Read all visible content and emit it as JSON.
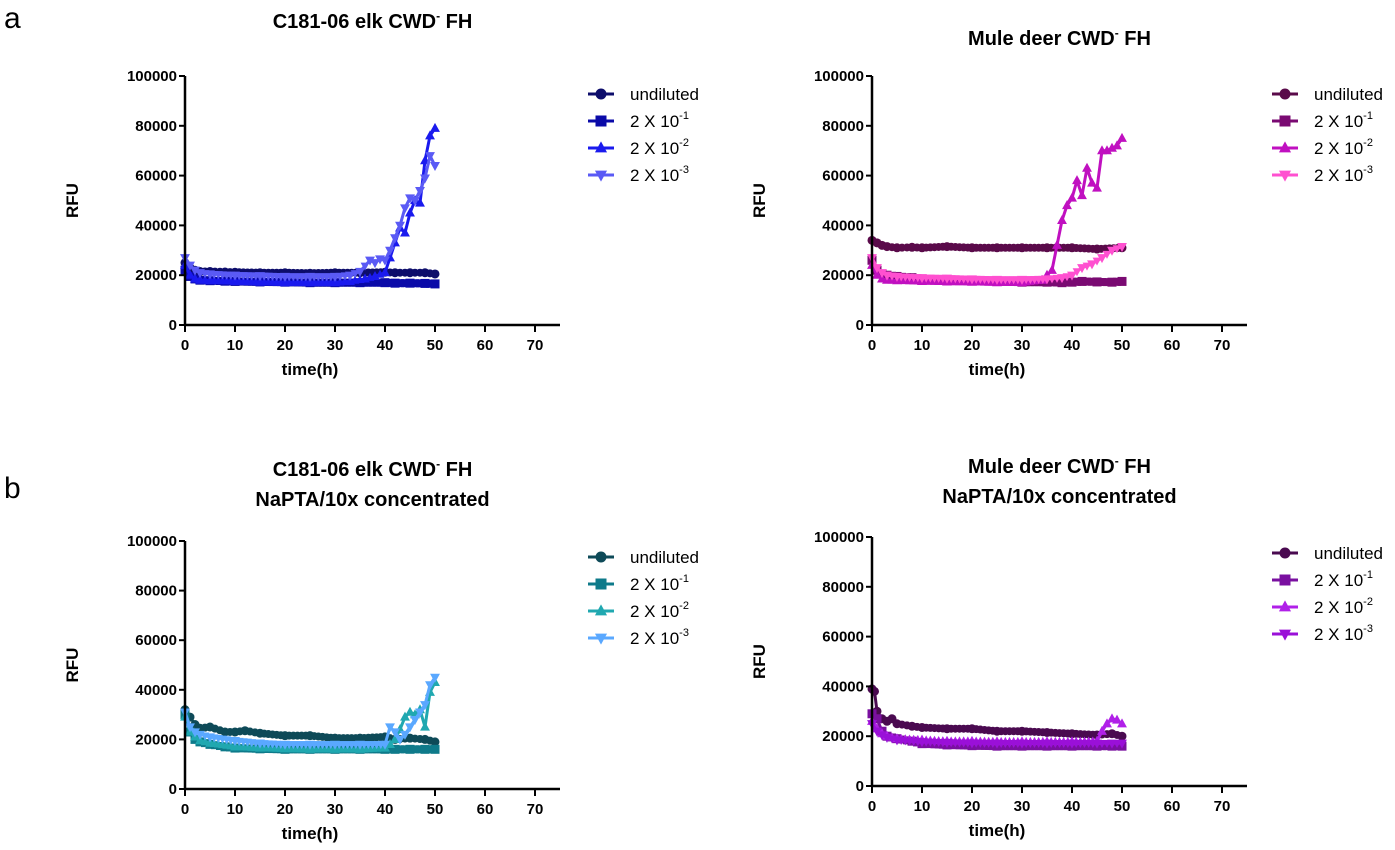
{
  "figure": {
    "panel_labels": [
      "a",
      "b"
    ]
  },
  "chart_data": [
    {
      "type": "line",
      "panel": "a",
      "title": "C181-06 elk CWD- FH",
      "title_lines": [
        {
          "pre": "C181-06 elk CWD",
          "sup": "-",
          "post": " FH"
        }
      ],
      "xlabel": "time(h)",
      "ylabel": "RFU",
      "xlim": [
        0,
        75
      ],
      "ylim": [
        0,
        100000
      ],
      "xticks": [
        0,
        10,
        20,
        30,
        40,
        50,
        60,
        70
      ],
      "yticks": [
        0,
        20000,
        40000,
        60000,
        80000,
        100000
      ],
      "grid": false,
      "legend_position": "right",
      "series": [
        {
          "name": "undiluted",
          "label_base": "undiluted",
          "label_sup": "",
          "marker": "circle",
          "color": "#0d0d6b",
          "x": [
            0,
            1,
            2,
            3,
            5,
            8,
            10,
            15,
            20,
            25,
            30,
            35,
            40,
            42,
            45,
            48,
            50
          ],
          "y": [
            25000,
            23000,
            22000,
            21500,
            21500,
            21300,
            21200,
            21000,
            21000,
            20800,
            21000,
            21000,
            21200,
            21000,
            21000,
            21000,
            20500
          ]
        },
        {
          "name": "2 X 10^-1",
          "label_base": "2 X 10",
          "label_sup": "-1",
          "marker": "square",
          "color": "#0a0aa8",
          "x": [
            0,
            1,
            2,
            3,
            5,
            8,
            10,
            15,
            20,
            25,
            30,
            35,
            40,
            42,
            45,
            48,
            50
          ],
          "y": [
            22000,
            19500,
            18500,
            18000,
            17800,
            17600,
            17500,
            17300,
            17200,
            17000,
            17000,
            17000,
            17000,
            16800,
            16800,
            16700,
            16500
          ]
        },
        {
          "name": "2 X 10^-2",
          "label_base": "2 X 10",
          "label_sup": "-2",
          "marker": "triangle-up",
          "color": "#1a1aee",
          "x": [
            0,
            1,
            2,
            3,
            5,
            10,
            15,
            20,
            25,
            30,
            33,
            36,
            38,
            40,
            41,
            42,
            43,
            44,
            45,
            46,
            47,
            48,
            49,
            50
          ],
          "y": [
            24000,
            20000,
            18500,
            18000,
            17800,
            17500,
            17200,
            17000,
            17000,
            17000,
            17500,
            18500,
            19500,
            21000,
            27000,
            33000,
            39000,
            37000,
            45000,
            50000,
            49000,
            66000,
            76000,
            79000
          ]
        },
        {
          "name": "2 X 10^-3",
          "label_base": "2 X 10",
          "label_sup": "-3",
          "marker": "triangle-down",
          "color": "#5a5af5",
          "x": [
            0,
            1,
            2,
            3,
            5,
            10,
            15,
            20,
            25,
            30,
            33,
            35,
            37,
            38,
            39,
            40,
            41,
            42,
            43,
            44,
            45,
            46,
            47,
            48,
            49,
            50
          ],
          "y": [
            27000,
            24000,
            22000,
            21000,
            20500,
            20000,
            19800,
            19500,
            19500,
            19500,
            20000,
            21500,
            26000,
            25000,
            26500,
            26000,
            30000,
            35000,
            40000,
            47000,
            51000,
            50000,
            54000,
            59000,
            68000,
            64000
          ]
        }
      ]
    },
    {
      "type": "line",
      "panel": "a",
      "title": "Mule deer CWD- FH",
      "title_lines": [
        {
          "pre": "Mule deer CWD",
          "sup": "-",
          "post": " FH"
        }
      ],
      "xlabel": "time(h)",
      "ylabel": "RFU",
      "xlim": [
        0,
        75
      ],
      "ylim": [
        0,
        100000
      ],
      "xticks": [
        0,
        10,
        20,
        30,
        40,
        50,
        60,
        70
      ],
      "yticks": [
        0,
        20000,
        40000,
        60000,
        80000,
        100000
      ],
      "grid": false,
      "legend_position": "right",
      "series": [
        {
          "name": "undiluted",
          "label_base": "undiluted",
          "label_sup": "",
          "marker": "circle",
          "color": "#5a0a4a",
          "x": [
            0,
            1,
            2,
            3,
            5,
            8,
            10,
            15,
            20,
            25,
            30,
            35,
            40,
            45,
            50
          ],
          "y": [
            34000,
            33000,
            32000,
            31500,
            31000,
            31200,
            31000,
            31500,
            31000,
            31000,
            31000,
            31000,
            31000,
            30500,
            31000
          ]
        },
        {
          "name": "2 X 10^-1",
          "label_base": "2 X 10",
          "label_sup": "-1",
          "marker": "square",
          "color": "#7a0a72",
          "x": [
            0,
            1,
            2,
            3,
            5,
            8,
            10,
            15,
            20,
            25,
            30,
            35,
            38,
            40,
            42,
            45,
            48,
            50
          ],
          "y": [
            26000,
            22000,
            20500,
            20000,
            19500,
            19000,
            18500,
            18000,
            17800,
            17500,
            17200,
            17200,
            17000,
            17200,
            17500,
            17300,
            17200,
            17500
          ]
        },
        {
          "name": "2 X 10^-2",
          "label_base": "2 X 10",
          "label_sup": "-2",
          "marker": "triangle-up",
          "color": "#c010c0",
          "x": [
            0,
            1,
            2,
            3,
            5,
            10,
            15,
            20,
            25,
            30,
            34,
            35,
            36,
            37,
            38,
            39,
            40,
            41,
            42,
            43,
            44,
            45,
            46,
            47,
            48,
            49,
            50
          ],
          "y": [
            24000,
            20000,
            18500,
            18000,
            17800,
            17500,
            17300,
            17200,
            17000,
            17000,
            18000,
            20000,
            22000,
            32000,
            42000,
            48000,
            51000,
            58000,
            52000,
            63000,
            57000,
            55000,
            70000,
            70000,
            71000,
            72000,
            75000
          ]
        },
        {
          "name": "2 X 10^-3",
          "label_base": "2 X 10",
          "label_sup": "-3",
          "marker": "triangle-down",
          "color": "#ff50d0",
          "x": [
            0,
            1,
            2,
            3,
            5,
            10,
            15,
            20,
            25,
            30,
            35,
            38,
            40,
            42,
            44,
            46,
            48,
            50
          ],
          "y": [
            27000,
            23000,
            21000,
            20000,
            19500,
            19000,
            18800,
            18500,
            18300,
            18300,
            18500,
            19000,
            20000,
            23000,
            24500,
            27000,
            30000,
            31500
          ]
        }
      ]
    },
    {
      "type": "line",
      "panel": "b",
      "title": "C181-06 elk CWD- FH NaPTA/10x concentrated",
      "title_lines": [
        {
          "pre": "C181-06 elk CWD",
          "sup": "-",
          "post": " FH"
        },
        {
          "pre": "NaPTA/10x concentrated",
          "sup": "",
          "post": ""
        }
      ],
      "xlabel": "time(h)",
      "ylabel": "RFU",
      "xlim": [
        0,
        75
      ],
      "ylim": [
        0,
        100000
      ],
      "xticks": [
        0,
        10,
        20,
        30,
        40,
        50,
        60,
        70
      ],
      "yticks": [
        0,
        20000,
        40000,
        60000,
        80000,
        100000
      ],
      "grid": false,
      "legend_position": "right",
      "series": [
        {
          "name": "undiluted",
          "label_base": "undiluted",
          "label_sup": "",
          "marker": "circle",
          "color": "#0e4a58",
          "x": [
            0,
            1,
            2,
            3,
            5,
            8,
            10,
            12,
            15,
            20,
            25,
            30,
            35,
            40,
            42,
            45,
            48,
            50
          ],
          "y": [
            32000,
            29000,
            26000,
            24500,
            25000,
            23000,
            23000,
            23500,
            22500,
            21500,
            21500,
            20500,
            20500,
            21000,
            20000,
            20500,
            20000,
            19000
          ]
        },
        {
          "name": "2 X 10^-1",
          "label_base": "2 X 10",
          "label_sup": "-1",
          "marker": "square",
          "color": "#0e7a8a",
          "x": [
            0,
            1,
            2,
            3,
            5,
            8,
            10,
            15,
            20,
            25,
            30,
            35,
            40,
            42,
            45,
            48,
            50
          ],
          "y": [
            30000,
            23000,
            20000,
            19000,
            18000,
            17000,
            16500,
            16200,
            16000,
            16000,
            16000,
            16000,
            16000,
            16000,
            16000,
            16000,
            16000
          ]
        },
        {
          "name": "2 X 10^-2",
          "label_base": "2 X 10",
          "label_sup": "-2",
          "marker": "triangle-up",
          "color": "#20a8b0",
          "x": [
            0,
            1,
            2,
            3,
            5,
            10,
            15,
            20,
            25,
            30,
            35,
            40,
            41,
            42,
            43,
            44,
            45,
            46,
            47,
            48,
            49,
            50
          ],
          "y": [
            29000,
            23000,
            21000,
            19500,
            18500,
            17000,
            16500,
            16200,
            16000,
            16000,
            16000,
            16500,
            18000,
            20000,
            24000,
            29000,
            31000,
            30000,
            32000,
            25000,
            39000,
            43000
          ]
        },
        {
          "name": "2 X 10^-3",
          "label_base": "2 X 10",
          "label_sup": "-3",
          "marker": "triangle-down",
          "color": "#5aa8ff",
          "x": [
            0,
            1,
            2,
            3,
            5,
            10,
            15,
            20,
            25,
            30,
            35,
            40,
            41,
            42,
            43,
            44,
            45,
            46,
            47,
            48,
            49,
            50
          ],
          "y": [
            31000,
            25000,
            23000,
            22000,
            21000,
            19500,
            18500,
            18000,
            18000,
            18000,
            18000,
            18000,
            25000,
            23000,
            20000,
            22000,
            25000,
            28000,
            31000,
            34000,
            42000,
            45000
          ]
        }
      ]
    },
    {
      "type": "line",
      "panel": "b",
      "title": "Mule deer CWD- FH NaPTA/10x concentrated",
      "title_lines": [
        {
          "pre": "Mule deer CWD",
          "sup": "-",
          "post": " FH"
        },
        {
          "pre": "NaPTA/10x concentrated",
          "sup": "",
          "post": ""
        }
      ],
      "xlabel": "time(h)",
      "ylabel": "RFU",
      "xlim": [
        0,
        75
      ],
      "ylim": [
        0,
        100000
      ],
      "xticks": [
        0,
        10,
        20,
        30,
        40,
        50,
        60,
        70
      ],
      "yticks": [
        0,
        20000,
        40000,
        60000,
        80000,
        100000
      ],
      "grid": false,
      "legend_position": "right",
      "series": [
        {
          "name": "undiluted",
          "label_base": "undiluted",
          "label_sup": "",
          "marker": "circle",
          "color": "#4a0a50",
          "x": [
            0,
            0.5,
            1,
            2,
            3,
            4,
            5,
            8,
            10,
            15,
            20,
            25,
            30,
            35,
            40,
            45,
            48,
            50
          ],
          "y": [
            39000,
            38000,
            30000,
            27000,
            26000,
            27000,
            25000,
            24000,
            23500,
            23000,
            23000,
            22000,
            22000,
            21500,
            21000,
            20500,
            21000,
            20000
          ]
        },
        {
          "name": "2 X 10^-1",
          "label_base": "2 X 10",
          "label_sup": "-1",
          "marker": "square",
          "color": "#7a10a0",
          "x": [
            0,
            1,
            2,
            3,
            5,
            8,
            10,
            15,
            20,
            25,
            30,
            35,
            40,
            45,
            48,
            50
          ],
          "y": [
            29000,
            27000,
            22000,
            20000,
            19000,
            18000,
            17000,
            16500,
            16200,
            16000,
            16000,
            16000,
            16000,
            16000,
            16000,
            16000
          ]
        },
        {
          "name": "2 X 10^-2",
          "label_base": "2 X 10",
          "label_sup": "-2",
          "marker": "triangle-up",
          "color": "#b020e8",
          "x": [
            0,
            1,
            2,
            3,
            5,
            10,
            15,
            20,
            25,
            30,
            35,
            40,
            45,
            46,
            47,
            48,
            49,
            50
          ],
          "y": [
            26000,
            23000,
            21000,
            20000,
            19000,
            18500,
            18000,
            18000,
            17800,
            17800,
            17800,
            17800,
            18000,
            22000,
            25000,
            27000,
            26500,
            25000
          ]
        },
        {
          "name": "2 X 10^-3",
          "label_base": "2 X 10",
          "label_sup": "-3",
          "marker": "triangle-down",
          "color": "#9a10d8",
          "x": [
            0,
            1,
            2,
            3,
            5,
            10,
            15,
            20,
            25,
            30,
            35,
            40,
            45,
            48,
            50
          ],
          "y": [
            25000,
            22000,
            20500,
            19500,
            18500,
            17800,
            17500,
            17300,
            17200,
            17200,
            17200,
            17200,
            17200,
            17200,
            17200
          ]
        }
      ]
    }
  ]
}
